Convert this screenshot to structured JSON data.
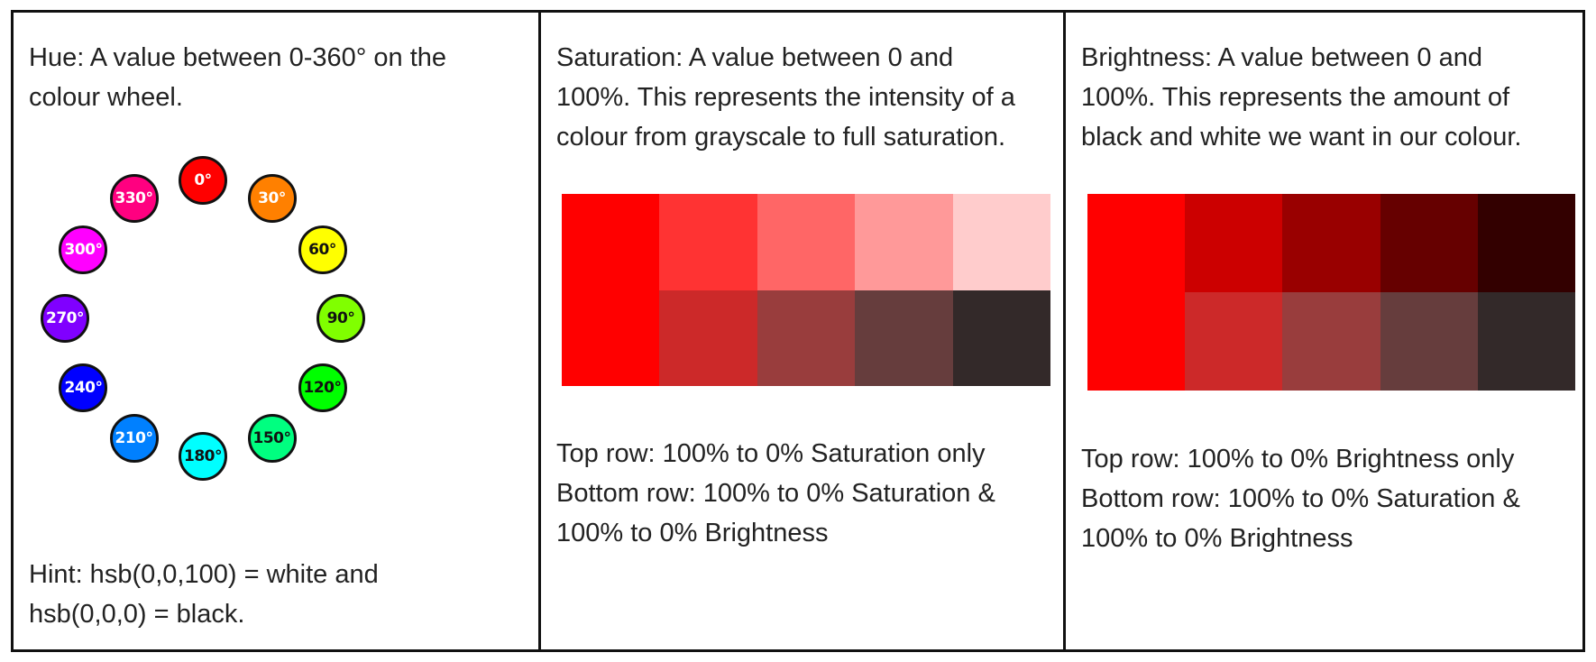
{
  "hue_cell": {
    "text_lines": [
      "Hue: A value between 0-360° on the",
      "colour wheel."
    ],
    "hint_lines": [
      "Hint: hsb(0,0,100) = white and",
      "hsb(0,0,0) = black."
    ],
    "wheel": [
      {
        "label": "0°",
        "color": "#ff0000",
        "text": "light"
      },
      {
        "label": "30°",
        "color": "#ff8000",
        "text": "light"
      },
      {
        "label": "60°",
        "color": "#ffff00",
        "text": "dark"
      },
      {
        "label": "90°",
        "color": "#80ff00",
        "text": "dark"
      },
      {
        "label": "120°",
        "color": "#00ff00",
        "text": "dark"
      },
      {
        "label": "150°",
        "color": "#00ff80",
        "text": "dark"
      },
      {
        "label": "180°",
        "color": "#00ffff",
        "text": "dark"
      },
      {
        "label": "210°",
        "color": "#0080ff",
        "text": "light"
      },
      {
        "label": "240°",
        "color": "#0000ff",
        "text": "light"
      },
      {
        "label": "270°",
        "color": "#8000ff",
        "text": "light"
      },
      {
        "label": "300°",
        "color": "#ff00ff",
        "text": "light"
      },
      {
        "label": "330°",
        "color": "#ff0080",
        "text": "light"
      }
    ]
  },
  "saturation_cell": {
    "text_lines": [
      "Saturation: A value between 0 and",
      "100%. This represents the intensity of a",
      "colour from grayscale to full saturation."
    ],
    "swatches": {
      "top": [
        "#ff0000",
        "#ff3333",
        "#ff6666",
        "#ff9999",
        "#ffcccc"
      ],
      "bottom": [
        "#ff0000",
        "#cc2929",
        "#993d3d",
        "#663d3d",
        "#332929"
      ]
    },
    "caption_lines": [
      "Top row: 100% to 0% Saturation only",
      "Bottom row: 100% to 0% Saturation &",
      "100% to 0% Brightness"
    ]
  },
  "brightness_cell": {
    "text_lines": [
      "Brightness: A value between 0 and",
      "100%. This represents the amount of",
      "black and white we want in our colour."
    ],
    "swatches": {
      "top": [
        "#ff0000",
        "#cc0000",
        "#990000",
        "#660000",
        "#330000"
      ],
      "bottom": [
        "#ff0000",
        "#cc2929",
        "#993d3d",
        "#663d3d",
        "#332929"
      ]
    },
    "caption_lines": [
      "Top row: 100% to 0% Brightness only",
      "Bottom row: 100% to 0% Saturation &",
      "100% to 0% Brightness"
    ]
  }
}
